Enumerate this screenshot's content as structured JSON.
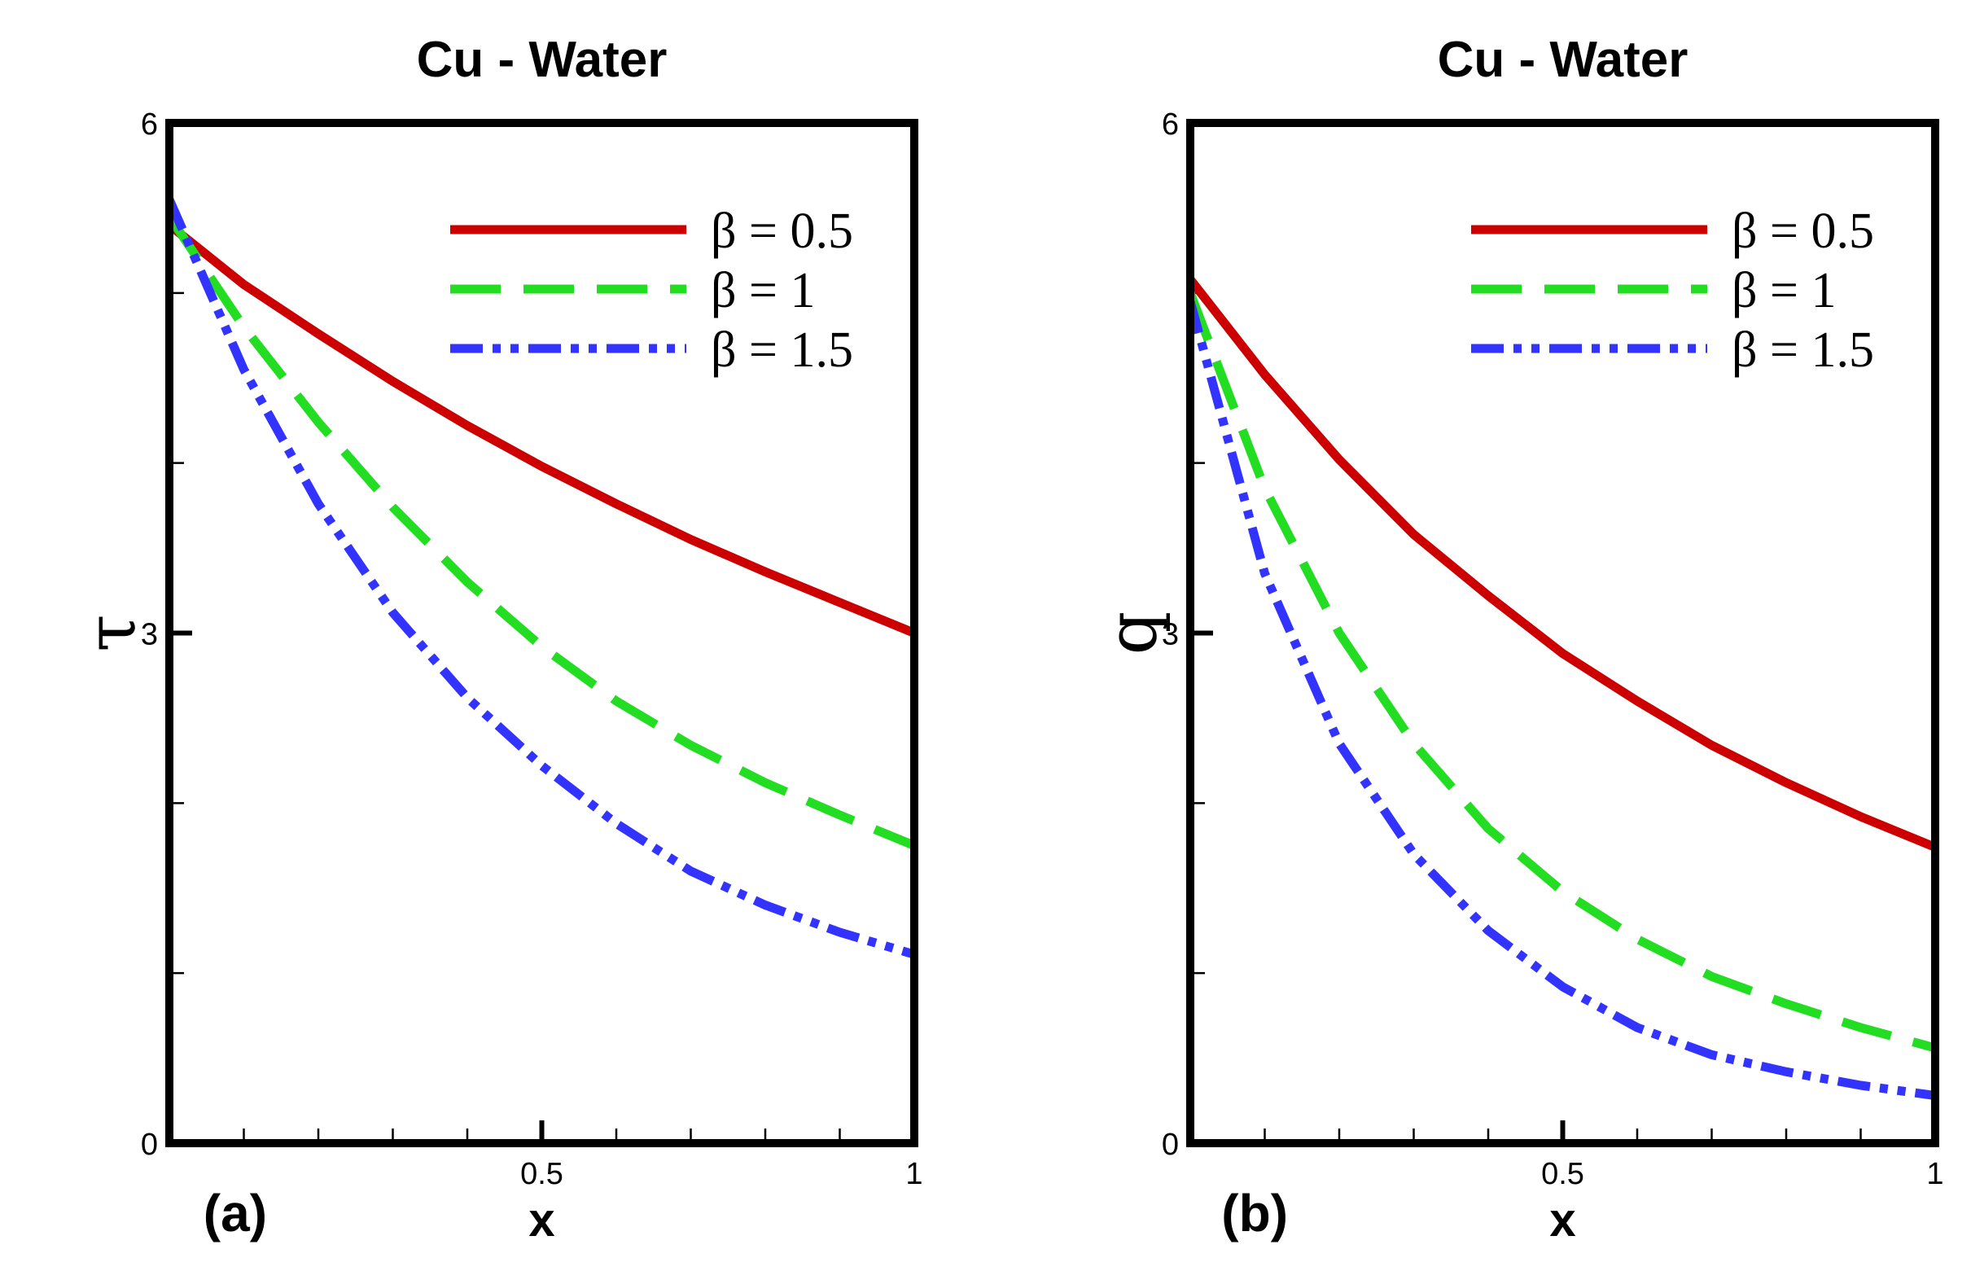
{
  "chart_data": [
    {
      "type": "line",
      "panel_label": "(a)",
      "title": "Cu - Water",
      "xlabel": "x",
      "ylabel": "τ",
      "xlim": [
        0,
        1
      ],
      "ylim": [
        0,
        6
      ],
      "x_ticks": [
        {
          "value": 0.5,
          "label": "0.5"
        },
        {
          "value": 1,
          "label": "1"
        }
      ],
      "y_ticks": [
        {
          "value": 0,
          "label": "0"
        },
        {
          "value": 3,
          "label": "3"
        },
        {
          "value": 6,
          "label": "6"
        }
      ],
      "legend_position": "top-right",
      "series": [
        {
          "name": "β = 0.5",
          "color": "#cc0000",
          "dash": "solid",
          "x": [
            0,
            0.1,
            0.2,
            0.3,
            0.4,
            0.5,
            0.6,
            0.7,
            0.8,
            0.9,
            1.0
          ],
          "y": [
            5.4,
            5.05,
            4.76,
            4.48,
            4.22,
            3.98,
            3.76,
            3.55,
            3.36,
            3.18,
            3.0
          ]
        },
        {
          "name": "β = 1",
          "color": "#22dd22",
          "dash": "dashed",
          "x": [
            0,
            0.1,
            0.2,
            0.3,
            0.4,
            0.5,
            0.6,
            0.7,
            0.8,
            0.9,
            1.0
          ],
          "y": [
            5.45,
            4.8,
            4.24,
            3.74,
            3.3,
            2.92,
            2.6,
            2.34,
            2.12,
            1.93,
            1.75
          ]
        },
        {
          "name": "β = 1.5",
          "color": "#3333ff",
          "dash": "dash-dot-dot",
          "x": [
            0,
            0.1,
            0.2,
            0.3,
            0.4,
            0.5,
            0.6,
            0.7,
            0.8,
            0.9,
            1.0
          ],
          "y": [
            5.55,
            4.55,
            3.76,
            3.12,
            2.62,
            2.22,
            1.88,
            1.6,
            1.4,
            1.24,
            1.11
          ]
        }
      ]
    },
    {
      "type": "line",
      "panel_label": "(b)",
      "title": "Cu - Water",
      "xlabel": "x",
      "ylabel": "q",
      "xlim": [
        0,
        1
      ],
      "ylim": [
        0,
        6
      ],
      "x_ticks": [
        {
          "value": 0.5,
          "label": "0.5"
        },
        {
          "value": 1,
          "label": "1"
        }
      ],
      "y_ticks": [
        {
          "value": 0,
          "label": "0"
        },
        {
          "value": 3,
          "label": "3"
        },
        {
          "value": 6,
          "label": "6"
        }
      ],
      "legend_position": "top-right",
      "series": [
        {
          "name": "β = 0.5",
          "color": "#cc0000",
          "dash": "solid",
          "x": [
            0,
            0.1,
            0.2,
            0.3,
            0.4,
            0.5,
            0.6,
            0.7,
            0.8,
            0.9,
            1.0
          ],
          "y": [
            5.08,
            4.52,
            4.02,
            3.58,
            3.22,
            2.88,
            2.6,
            2.34,
            2.12,
            1.92,
            1.74
          ]
        },
        {
          "name": "β = 1",
          "color": "#22dd22",
          "dash": "dashed",
          "x": [
            0,
            0.1,
            0.2,
            0.3,
            0.4,
            0.5,
            0.6,
            0.7,
            0.8,
            0.9,
            1.0
          ],
          "y": [
            5.0,
            3.85,
            3.0,
            2.35,
            1.85,
            1.48,
            1.2,
            0.98,
            0.82,
            0.68,
            0.56
          ]
        },
        {
          "name": "β = 1.5",
          "color": "#3333ff",
          "dash": "dash-dot-dot",
          "x": [
            0,
            0.1,
            0.2,
            0.3,
            0.4,
            0.5,
            0.6,
            0.7,
            0.8,
            0.9,
            1.0
          ],
          "y": [
            4.95,
            3.35,
            2.35,
            1.7,
            1.25,
            0.92,
            0.68,
            0.52,
            0.42,
            0.34,
            0.28
          ]
        }
      ]
    }
  ]
}
